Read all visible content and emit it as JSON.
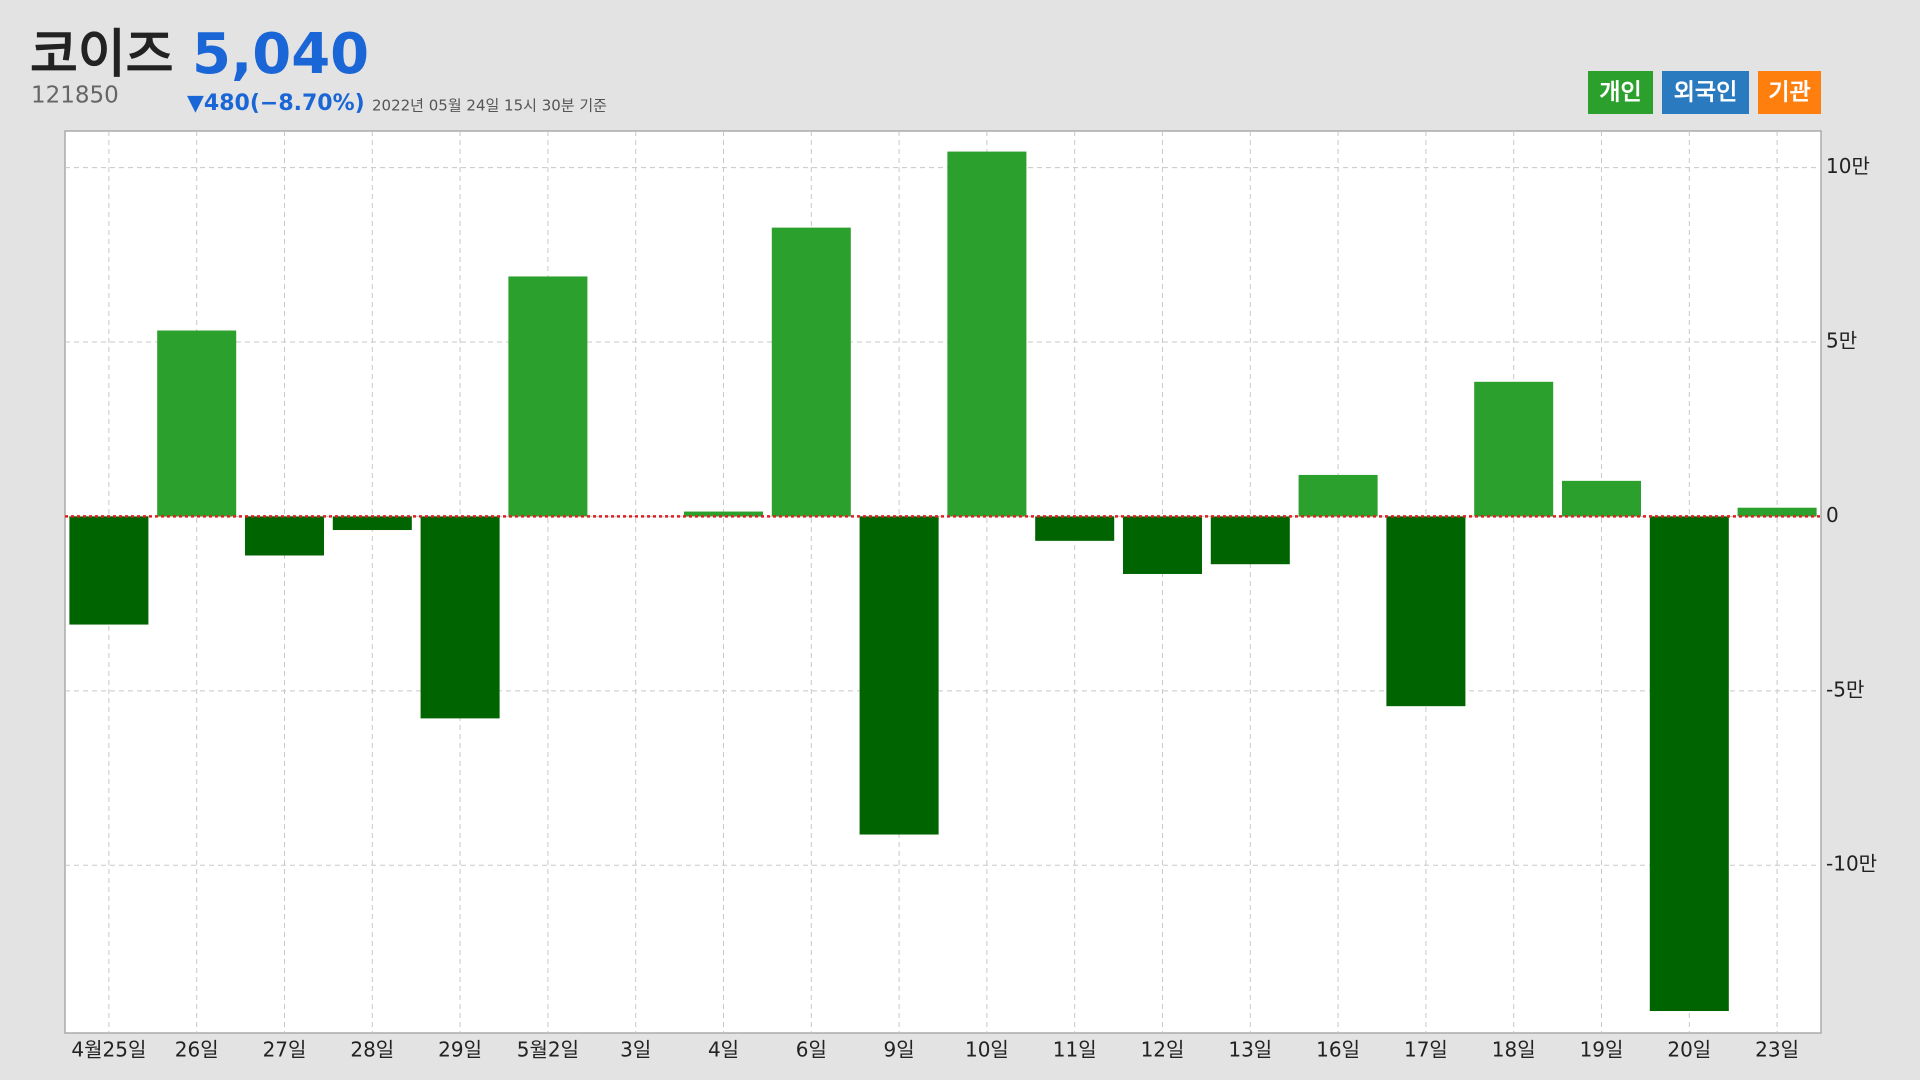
{
  "chart_data": {
    "type": "bar",
    "title": "코이즈",
    "price": "5,040",
    "code": "121850",
    "change": "▼480(−8.70%)",
    "date": "2022년 05월 24일 15시 30분 기준",
    "legend": [
      {
        "name": "개인",
        "color": "#2ca02c"
      },
      {
        "name": "외국인",
        "color": "#2a7abf"
      },
      {
        "name": "기관",
        "color": "#ff7f0e"
      }
    ],
    "categories": [
      "4월25일",
      "26일",
      "27일",
      "28일",
      "29일",
      "5월2일",
      "3일",
      "4일",
      "6일",
      "9일",
      "10일",
      "11일",
      "12일",
      "13일",
      "16일",
      "17일",
      "18일",
      "19일",
      "20일",
      "23일"
    ],
    "values": [
      -31000,
      53300,
      -11200,
      -3900,
      -57900,
      68800,
      0,
      1400,
      82800,
      -91200,
      104600,
      -7000,
      -16500,
      -13700,
      11900,
      -54400,
      38600,
      10200,
      -141800,
      2500
    ],
    "positive_color": "#2ca02c",
    "negative_color": "#006400",
    "ylim": [
      -148100,
      110500
    ],
    "yticks": [
      {
        "value": 100000,
        "label": "10만"
      },
      {
        "value": 50000,
        "label": "5만"
      },
      0,
      {
        "value": -50000,
        "label": "-5만"
      },
      {
        "value": -100000,
        "label": "-10만"
      }
    ],
    "grid": true
  }
}
